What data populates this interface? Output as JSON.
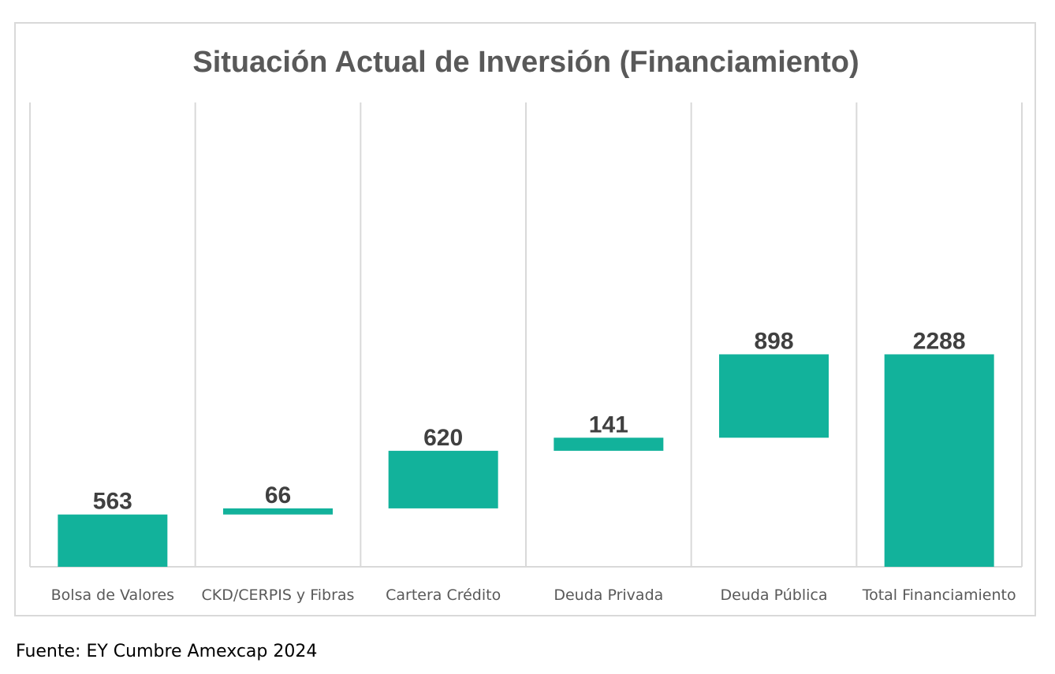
{
  "chart_data": {
    "type": "bar",
    "title": "Situación Actual de Inversión (Financiamiento)",
    "categories": [
      "Bolsa de Valores",
      "CKD/CERPIS y Fibras",
      "Cartera Crédito",
      "Deuda Privada",
      "Deuda Pública",
      "Total Financiamiento"
    ],
    "values": [
      563,
      66,
      620,
      141,
      898,
      2288
    ],
    "data_labels": [
      "563",
      "66",
      "620",
      "141",
      "898",
      "2288"
    ],
    "subtype": "waterfall",
    "xlabel": "",
    "ylabel": "",
    "ylim": [
      0,
      5000
    ],
    "grid": "vertical category separators",
    "legend": "none",
    "bar_color": "#12b29b",
    "label_color": "#404040",
    "tick_color": "#595959"
  },
  "source": "Fuente: EY Cumbre Amexcap 2024"
}
